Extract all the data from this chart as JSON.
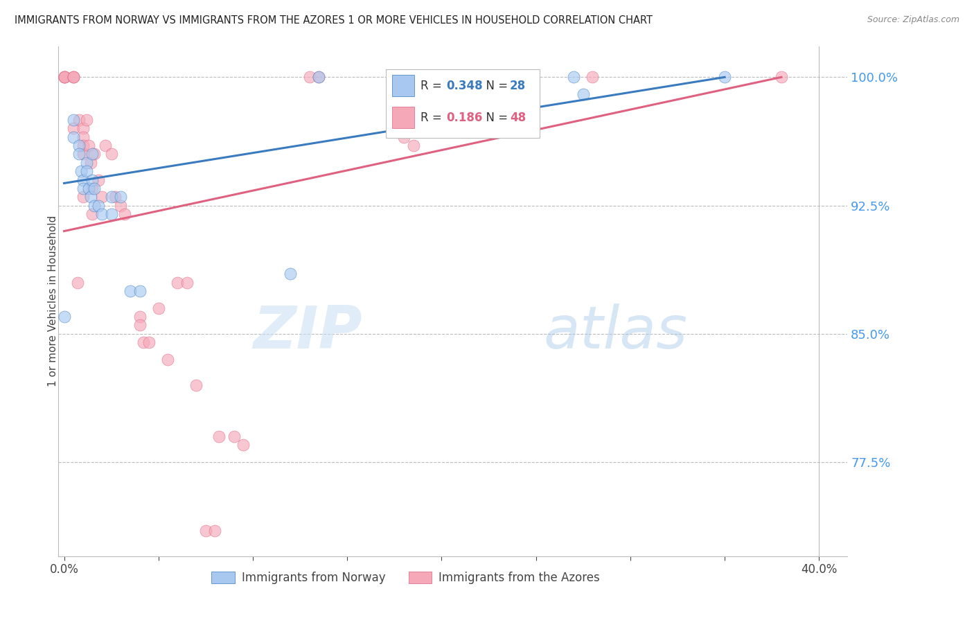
{
  "title": "IMMIGRANTS FROM NORWAY VS IMMIGRANTS FROM THE AZORES 1 OR MORE VEHICLES IN HOUSEHOLD CORRELATION CHART",
  "source": "Source: ZipAtlas.com",
  "ylabel": "1 or more Vehicles in Household",
  "ylim": [
    0.72,
    1.018
  ],
  "xlim": [
    -0.003,
    0.415
  ],
  "yticks": [
    0.775,
    0.85,
    0.925,
    1.0
  ],
  "ytick_labels": [
    "77.5%",
    "85.0%",
    "92.5%",
    "100.0%"
  ],
  "xticks": [
    0.0,
    0.05,
    0.1,
    0.15,
    0.2,
    0.25,
    0.3,
    0.35,
    0.4
  ],
  "xtick_labels": [
    "0.0%",
    "",
    "",
    "",
    "",
    "",
    "",
    "",
    "40.0%"
  ],
  "norway_R": 0.348,
  "norway_N": 28,
  "azores_R": 0.186,
  "azores_N": 48,
  "norway_color": "#a8c8f0",
  "azores_color": "#f4a8b8",
  "norway_line_color": "#3a7abf",
  "azores_line_color": "#e06080",
  "background_color": "#ffffff",
  "grid_color": "#bbbbbb",
  "tick_color": "#4499ee",
  "norway_line_x0": 0.0,
  "norway_line_x1": 0.35,
  "norway_line_y0": 0.938,
  "norway_line_y1": 1.0,
  "azores_line_x0": 0.0,
  "azores_line_x1": 0.38,
  "azores_line_y0": 0.91,
  "azores_line_y1": 1.0,
  "norway_x": [
    0.0,
    0.005,
    0.005,
    0.008,
    0.008,
    0.009,
    0.01,
    0.01,
    0.012,
    0.012,
    0.013,
    0.014,
    0.015,
    0.015,
    0.016,
    0.016,
    0.018,
    0.02,
    0.025,
    0.025,
    0.03,
    0.035,
    0.04,
    0.12,
    0.135,
    0.27,
    0.275,
    0.35
  ],
  "norway_y": [
    0.86,
    0.975,
    0.965,
    0.96,
    0.955,
    0.945,
    0.94,
    0.935,
    0.95,
    0.945,
    0.935,
    0.93,
    0.955,
    0.94,
    0.935,
    0.925,
    0.925,
    0.92,
    0.93,
    0.92,
    0.93,
    0.875,
    0.875,
    0.885,
    1.0,
    1.0,
    0.99,
    1.0
  ],
  "azores_x": [
    0.0,
    0.0,
    0.0,
    0.0,
    0.005,
    0.005,
    0.005,
    0.005,
    0.007,
    0.008,
    0.01,
    0.01,
    0.01,
    0.01,
    0.01,
    0.012,
    0.013,
    0.014,
    0.015,
    0.015,
    0.016,
    0.018,
    0.02,
    0.022,
    0.025,
    0.027,
    0.03,
    0.032,
    0.04,
    0.04,
    0.042,
    0.045,
    0.05,
    0.055,
    0.06,
    0.065,
    0.07,
    0.075,
    0.08,
    0.082,
    0.09,
    0.095,
    0.13,
    0.135,
    0.18,
    0.185,
    0.28,
    0.38
  ],
  "azores_y": [
    1.0,
    1.0,
    1.0,
    1.0,
    1.0,
    1.0,
    1.0,
    0.97,
    0.88,
    0.975,
    0.97,
    0.965,
    0.96,
    0.955,
    0.93,
    0.975,
    0.96,
    0.95,
    0.935,
    0.92,
    0.955,
    0.94,
    0.93,
    0.96,
    0.955,
    0.93,
    0.925,
    0.92,
    0.86,
    0.855,
    0.845,
    0.845,
    0.865,
    0.835,
    0.88,
    0.88,
    0.82,
    0.735,
    0.735,
    0.79,
    0.79,
    0.785,
    1.0,
    1.0,
    0.965,
    0.96,
    1.0,
    1.0
  ]
}
